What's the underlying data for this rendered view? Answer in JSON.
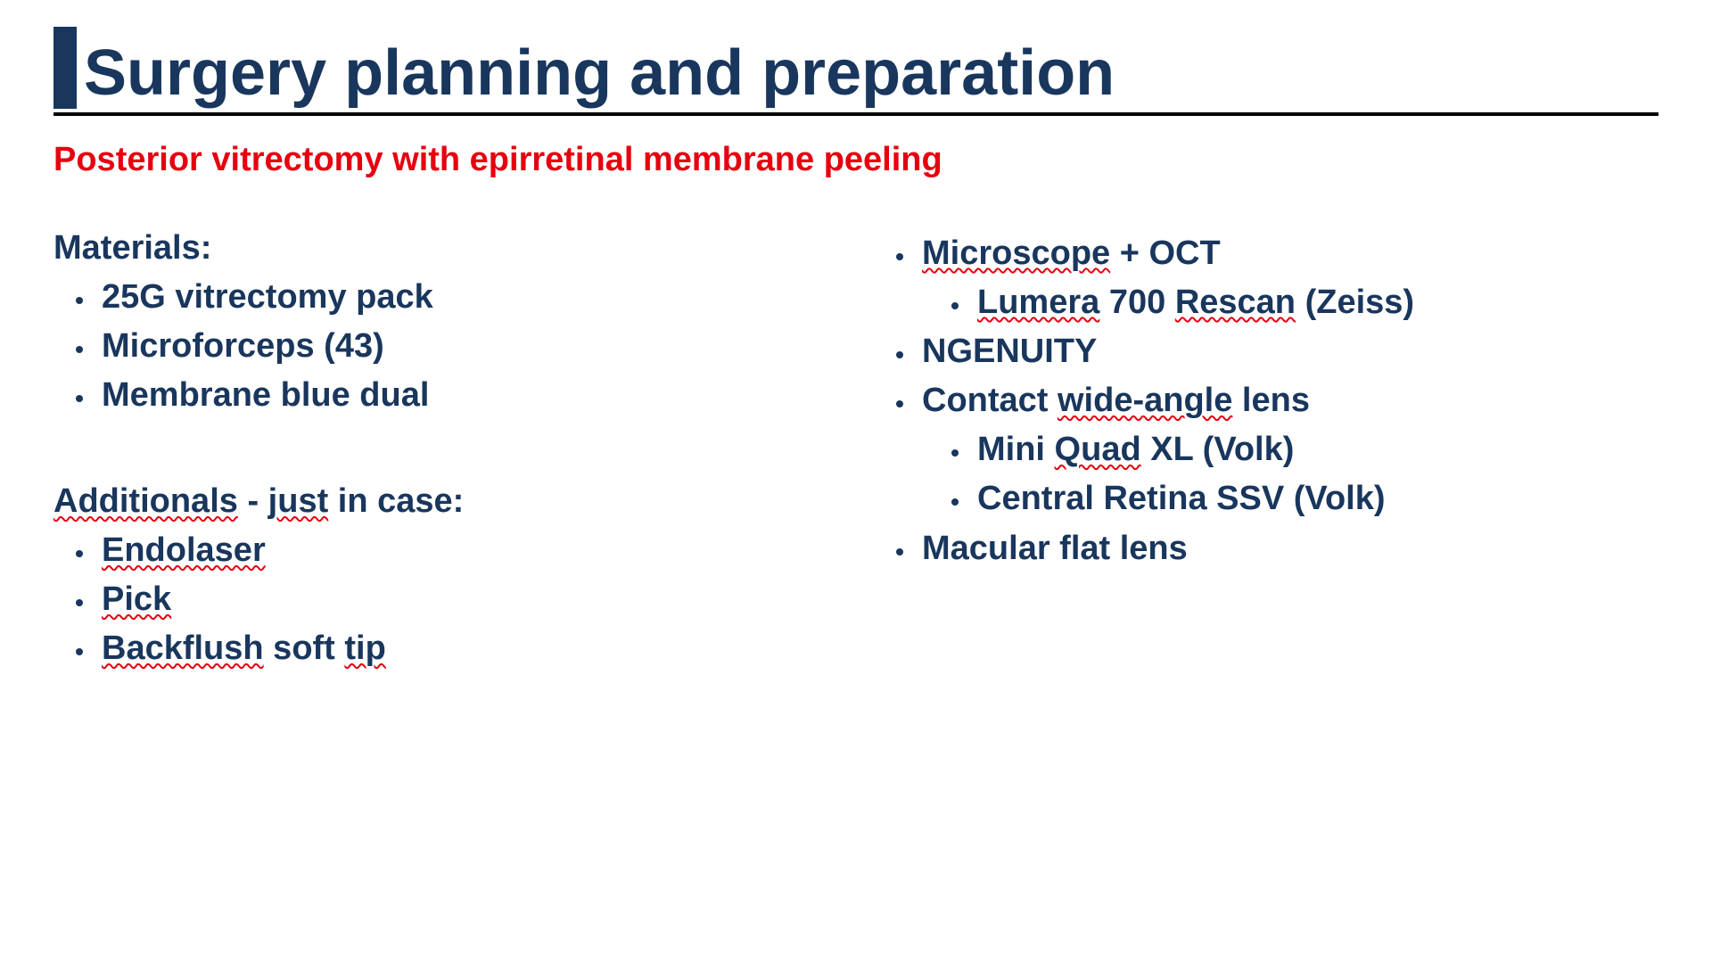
{
  "title": "Surgery planning and preparation",
  "subtitle": "Posterior vitrectomy with epirretinal membrane peeling",
  "colors": {
    "heading": "#19365d",
    "subtitle": "#e6000f",
    "rule": "#000000",
    "background": "#ffffff",
    "wavy_underline": "#e6000f"
  },
  "left": {
    "materials_heading": "Materials:",
    "materials": {
      "i0": "25G vitrectomy pack",
      "i1": "Microforceps (43)",
      "i2": "Membrane blue dual"
    },
    "additionals_heading": {
      "p0": "Additionals",
      "sep": " - ",
      "p1": "just",
      "suffix": " in case:"
    },
    "additionals": {
      "i0": "Endolaser",
      "i1": "Pick",
      "i2_a": "Backflush",
      "i2_b": " soft ",
      "i2_c": "tip"
    }
  },
  "right": {
    "r0_a": "Microscope",
    "r0_b": " + OCT",
    "r0_sub0_a": "Lumera",
    "r0_sub0_b": " 700 ",
    "r0_sub0_c": "Rescan",
    "r0_sub0_d": " (Zeiss)",
    "r1": "NGENUITY",
    "r2_a": "Contact ",
    "r2_b": "wide-angle",
    "r2_c": " lens",
    "r2_sub0_a": "Mini ",
    "r2_sub0_b": "Quad",
    "r2_sub0_c": " XL (Volk)",
    "r2_sub1": "Central Retina SSV (Volk)",
    "r3": "Macular flat lens"
  }
}
